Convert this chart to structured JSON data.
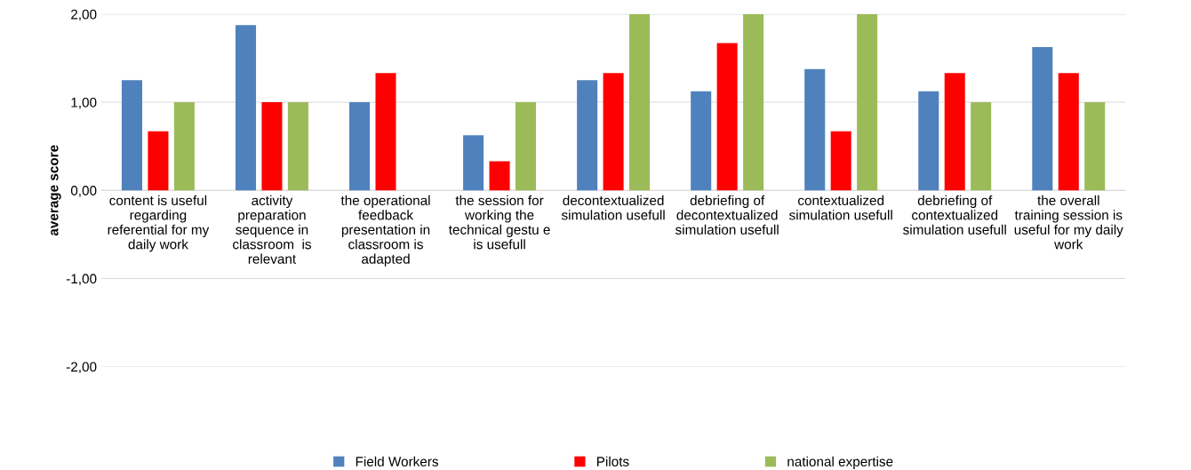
{
  "chart_data": {
    "type": "bar",
    "ylabel": "average score",
    "categories": [
      "content is useful regarding referential for my daily work",
      "activity preparation sequence in classroom  is relevant",
      "the operational feedback presentation in classroom is adapted",
      "the session for working the technical gestu e is usefull",
      "decontextualized simulation usefull",
      "debriefing of decontextualized simulation usefull",
      "contextualized simulation usefull",
      "debriefing of contextualized simulation usefull",
      "the overall training session is useful for my daily work"
    ],
    "series": [
      {
        "name": "Field Workers",
        "color": "#4f81bd",
        "values": [
          1.25,
          1.875,
          1.0,
          0.625,
          1.25,
          1.125,
          1.375,
          1.125,
          1.625
        ]
      },
      {
        "name": "Pilots",
        "color": "#ff0000",
        "values": [
          0.67,
          1.0,
          1.33,
          0.33,
          1.33,
          1.67,
          0.67,
          1.33,
          1.33
        ]
      },
      {
        "name": "national expertise",
        "color": "#9bbb59",
        "values": [
          1.0,
          1.0,
          null,
          1.0,
          2.0,
          2.0,
          2.0,
          1.0,
          1.0
        ]
      }
    ],
    "ylim": [
      -2,
      2
    ],
    "yticks": [
      {
        "value": -2,
        "label": "-2,00"
      },
      {
        "value": -1,
        "label": "-1,00"
      },
      {
        "value": 0,
        "label": "0,00"
      },
      {
        "value": 1,
        "label": "1,00"
      },
      {
        "value": 2,
        "label": "2,00"
      }
    ],
    "grid": "y",
    "legend": "bottom"
  }
}
